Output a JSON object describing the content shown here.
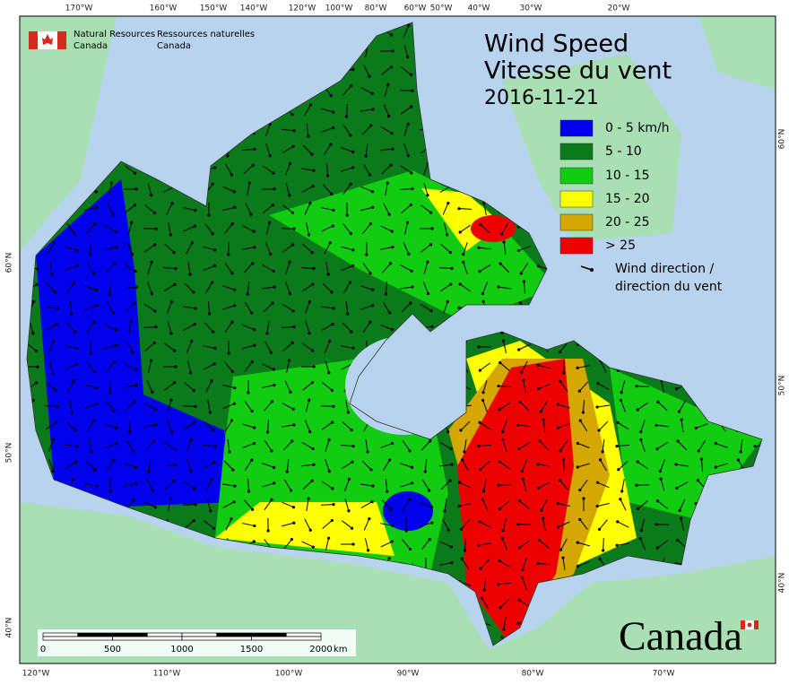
{
  "header": {
    "agency_en": [
      "Natural Resources",
      "Canada"
    ],
    "agency_fr": [
      "Ressources naturelles",
      "Canada"
    ]
  },
  "title": {
    "en": "Wind Speed",
    "fr": "Vitesse du vent",
    "date": "2016-11-21"
  },
  "legend": {
    "items": [
      {
        "label": "0 - 5 km/h",
        "color": "#0000ee"
      },
      {
        "label": "5 - 10",
        "color": "#0a7a1a"
      },
      {
        "label": "10 - 15",
        "color": "#11cc11"
      },
      {
        "label": "15 - 20",
        "color": "#ffff00"
      },
      {
        "label": "20 - 25",
        "color": "#d4a800"
      },
      {
        "label": "> 25",
        "color": "#ee0000"
      }
    ],
    "arrow_label": [
      "Wind direction /",
      "direction du vent"
    ]
  },
  "graticule": {
    "top": [
      "170°W",
      "160°W",
      "150°W",
      "140°W",
      "120°W",
      "100°W",
      "80°W",
      "60°W",
      "50°W",
      "40°W",
      "30°W",
      "20°W"
    ],
    "bottom": [
      "120°W",
      "110°W",
      "100°W",
      "90°W",
      "80°W",
      "70°W"
    ],
    "left": [
      "60°N",
      "50°N",
      "40°N"
    ],
    "right": [
      "60°N",
      "50°N",
      "40°N"
    ]
  },
  "scale_bar": {
    "ticks": [
      0,
      500,
      1000,
      1500,
      2000
    ],
    "unit": "km"
  },
  "wordmark": "Canada"
}
